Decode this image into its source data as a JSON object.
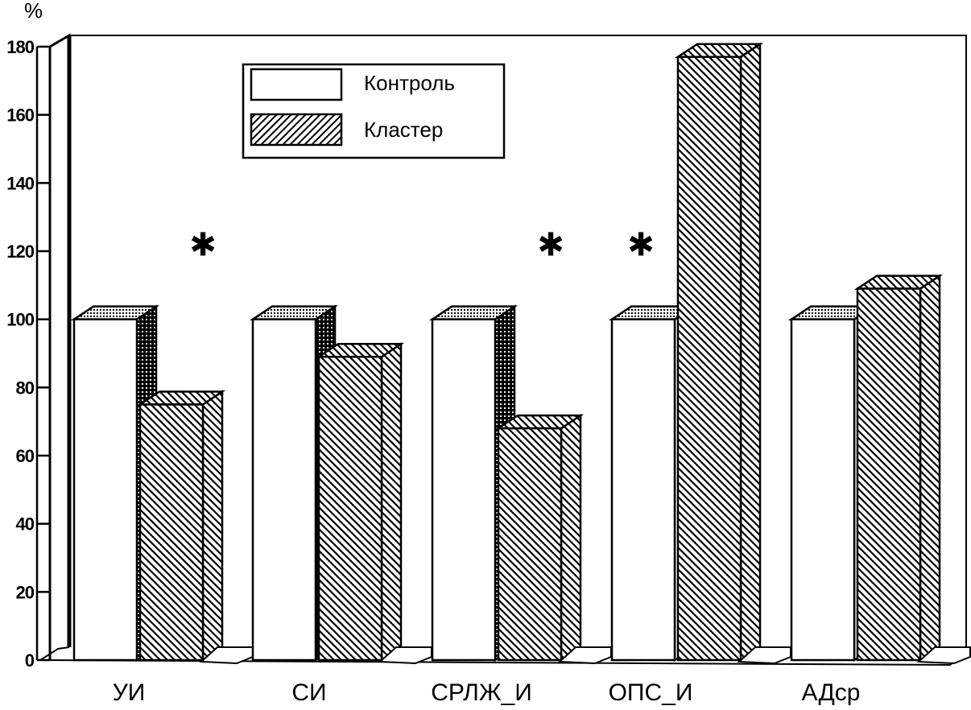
{
  "chart_data": {
    "type": "bar",
    "y_unit_label": "%",
    "categories": [
      "УИ",
      "СИ",
      "СРЛЖ_И",
      "ОПС_И",
      "АДср"
    ],
    "series": [
      {
        "name": "Контроль",
        "values": [
          100,
          100,
          100,
          100,
          100
        ],
        "pattern": "plain"
      },
      {
        "name": "Кластер",
        "values": [
          75,
          89,
          68,
          177,
          109
        ],
        "pattern": "hatched"
      }
    ],
    "significance_marker": "✱",
    "significant": [
      true,
      false,
      true,
      true,
      false
    ],
    "yticks": [
      "0",
      "20",
      "40",
      "60",
      "80",
      "100",
      "120",
      "140",
      "160",
      "180"
    ],
    "ylim": [
      0,
      180
    ],
    "grid": false,
    "legend_position": "top-center",
    "style_3d": true,
    "colors": {
      "ink": "#000000",
      "background": "#ffffff",
      "side_shade": "#7a7a7a"
    }
  }
}
